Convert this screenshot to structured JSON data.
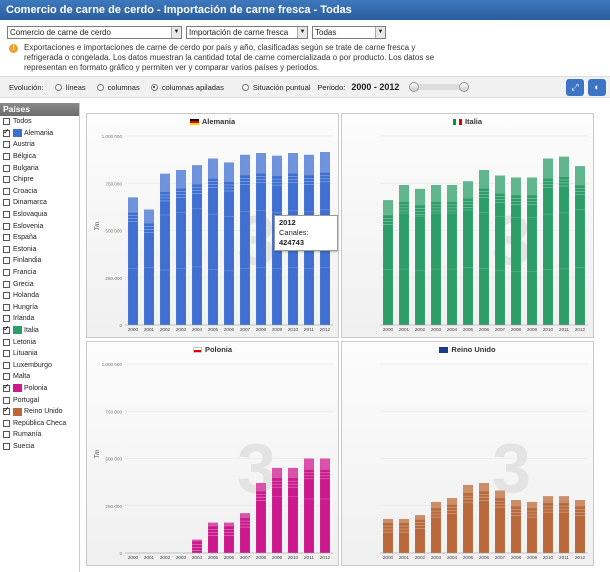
{
  "title": "Comercio de carne de cerdo - Importación de carne fresca - Todas",
  "selects": [
    {
      "value": "Comercio de carne de cerdo"
    },
    {
      "value": "Importación de carne fresca"
    },
    {
      "value": "Todas"
    }
  ],
  "info_text": "Exportaciones e importaciones de carne de cerdo por país y año, clasificadas según se trate de carne fresca y refrigerada o congelada. Los datos muestran la cantidad total de carne comercializada o por producto. Los datos se representan en formato gráfico y permiten ver y comparar varios países y periodos.",
  "toolbar": {
    "evolution_label": "Evolución:",
    "options": [
      {
        "label": "líneas",
        "selected": false
      },
      {
        "label": "columnas",
        "selected": false
      },
      {
        "label": "columnas apiladas",
        "selected": true
      },
      {
        "label": "Situación puntual",
        "selected": false
      }
    ],
    "period_label": "Periodo:",
    "period_range": "2000 - 2012"
  },
  "sidebar": {
    "title": "Países",
    "items": [
      {
        "label": "Todos",
        "checked": false,
        "color": ""
      },
      {
        "label": "Alemania",
        "checked": true,
        "color": "#3f6fd1"
      },
      {
        "label": "Austria",
        "checked": false,
        "color": ""
      },
      {
        "label": "Bélgica",
        "checked": false,
        "color": ""
      },
      {
        "label": "Bulgaria",
        "checked": false,
        "color": ""
      },
      {
        "label": "Chipre",
        "checked": false,
        "color": ""
      },
      {
        "label": "Croacia",
        "checked": false,
        "color": ""
      },
      {
        "label": "Dinamarca",
        "checked": false,
        "color": ""
      },
      {
        "label": "Eslovaquia",
        "checked": false,
        "color": ""
      },
      {
        "label": "Eslovenia",
        "checked": false,
        "color": ""
      },
      {
        "label": "España",
        "checked": false,
        "color": ""
      },
      {
        "label": "Estonia",
        "checked": false,
        "color": ""
      },
      {
        "label": "Finlandia",
        "checked": false,
        "color": ""
      },
      {
        "label": "Francia",
        "checked": false,
        "color": ""
      },
      {
        "label": "Grecia",
        "checked": false,
        "color": ""
      },
      {
        "label": "Holanda",
        "checked": false,
        "color": ""
      },
      {
        "label": "Hungría",
        "checked": false,
        "color": ""
      },
      {
        "label": "Irlanda",
        "checked": false,
        "color": ""
      },
      {
        "label": "Italia",
        "checked": true,
        "color": "#2e9e68"
      },
      {
        "label": "Letonia",
        "checked": false,
        "color": ""
      },
      {
        "label": "Lituania",
        "checked": false,
        "color": ""
      },
      {
        "label": "Luxemburgo",
        "checked": false,
        "color": ""
      },
      {
        "label": "Malta",
        "checked": false,
        "color": ""
      },
      {
        "label": "Polonia",
        "checked": true,
        "color": "#cc1a8e"
      },
      {
        "label": "Portugal",
        "checked": false,
        "color": ""
      },
      {
        "label": "Reino Unido",
        "checked": true,
        "color": "#b8683a"
      },
      {
        "label": "República Checa",
        "checked": false,
        "color": ""
      },
      {
        "label": "Rumanía",
        "checked": false,
        "color": ""
      },
      {
        "label": "Suecia",
        "checked": false,
        "color": ""
      }
    ]
  },
  "tooltip": {
    "year": "2012",
    "label": "Canales:",
    "value": "424743"
  },
  "chart_data": [
    {
      "type": "bar",
      "title": "Alemania",
      "color": "#3f6fd1",
      "ylabel": "Tm",
      "ylim": [
        0,
        1000000
      ],
      "yticks": [
        "0",
        "250.000",
        "500.000",
        "750.000",
        "1.000.000"
      ],
      "categories": [
        "2000",
        "2001",
        "2002",
        "2003",
        "2004",
        "2005",
        "2006",
        "2007",
        "2008",
        "2009",
        "2010",
        "2011",
        "2012"
      ],
      "values": [
        675000,
        610000,
        800000,
        820000,
        845000,
        880000,
        860000,
        900000,
        910000,
        895000,
        910000,
        900000,
        915000
      ]
    },
    {
      "type": "bar",
      "title": "Italia",
      "color": "#2e9e68",
      "ylabel": "",
      "ylim": [
        0,
        1000000
      ],
      "yticks": [],
      "categories": [
        "2000",
        "2001",
        "2002",
        "2003",
        "2004",
        "2005",
        "2006",
        "2007",
        "2008",
        "2009",
        "2010",
        "2011",
        "2012"
      ],
      "values": [
        660000,
        740000,
        720000,
        740000,
        740000,
        760000,
        820000,
        790000,
        780000,
        780000,
        880000,
        890000,
        840000
      ]
    },
    {
      "type": "bar",
      "title": "Polonia",
      "color": "#cc1a8e",
      "ylabel": "Tm",
      "ylim": [
        0,
        1000000
      ],
      "yticks": [
        "0",
        "250.000",
        "500.000",
        "750.000",
        "1.000.000"
      ],
      "categories": [
        "2000",
        "2001",
        "2002",
        "2003",
        "2004",
        "2005",
        "2006",
        "2007",
        "2008",
        "2009",
        "2010",
        "2011",
        "2012"
      ],
      "values": [
        0,
        0,
        0,
        0,
        70000,
        160000,
        160000,
        210000,
        370000,
        450000,
        450000,
        500000,
        500000
      ]
    },
    {
      "type": "bar",
      "title": "Reino Unido",
      "color": "#b8683a",
      "ylabel": "",
      "ylim": [
        0,
        1000000
      ],
      "yticks": [],
      "categories": [
        "2000",
        "2001",
        "2002",
        "2003",
        "2004",
        "2005",
        "2006",
        "2007",
        "2008",
        "2009",
        "2010",
        "2011",
        "2012"
      ],
      "values": [
        180000,
        180000,
        200000,
        270000,
        290000,
        360000,
        370000,
        330000,
        280000,
        270000,
        300000,
        300000,
        280000
      ]
    }
  ]
}
